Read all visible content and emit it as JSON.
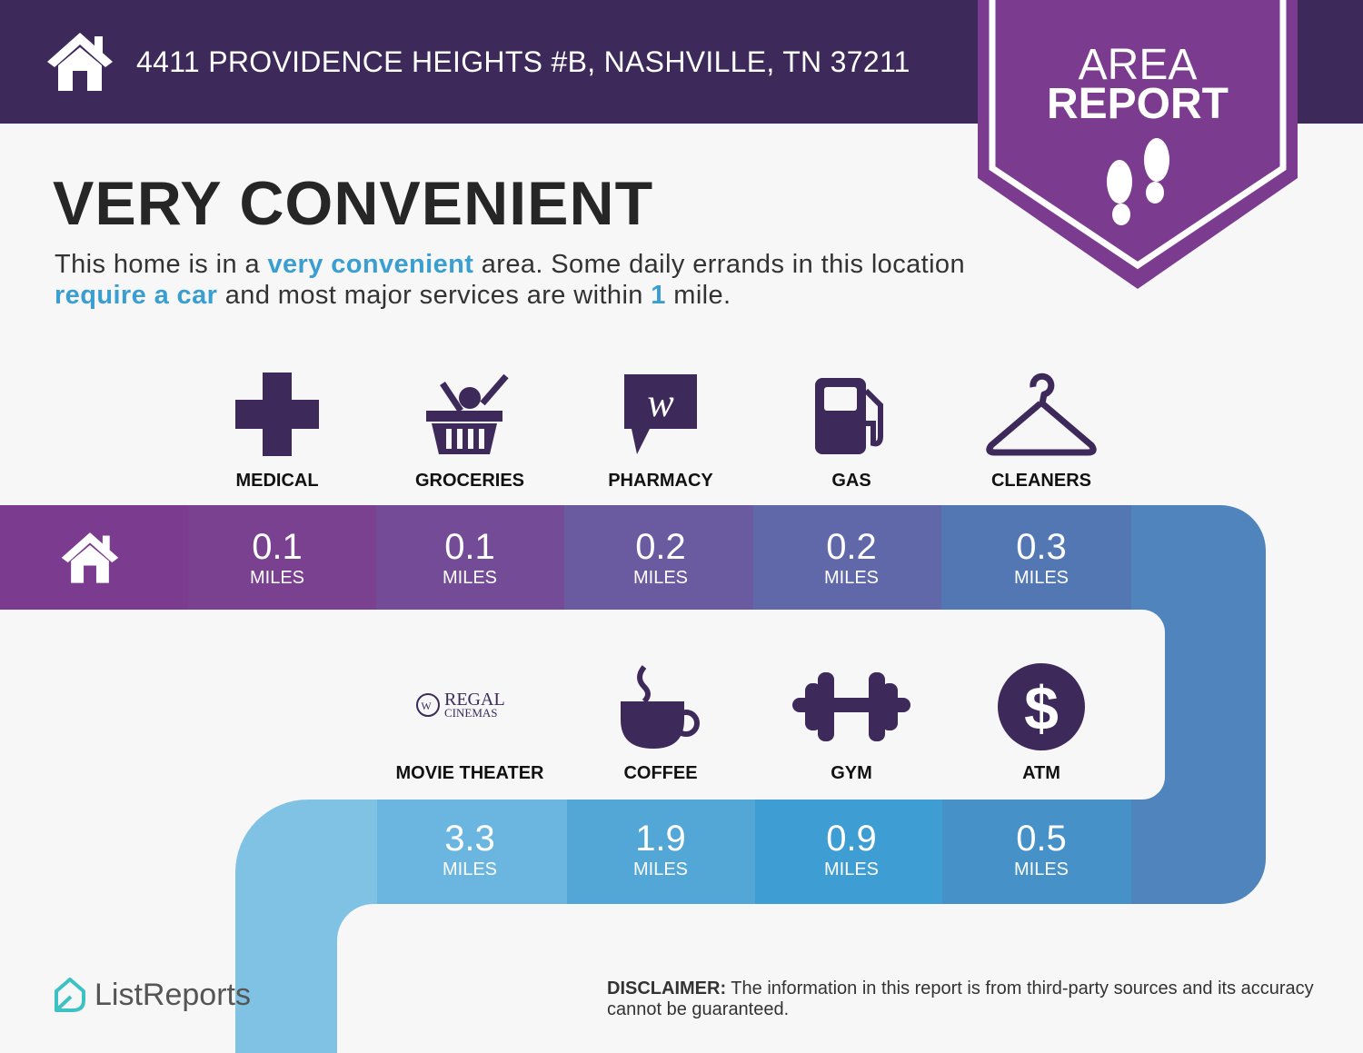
{
  "header": {
    "address": "4411 PROVIDENCE HEIGHTS #B, NASHVILLE, TN 37211",
    "home_icon": "house-icon"
  },
  "badge": {
    "line1": "AREA",
    "line2": "REPORT",
    "icon": "footprints-icon",
    "color": "#7b3b8f"
  },
  "title": "VERY CONVENIENT",
  "description": {
    "p1": "This home is in a ",
    "h1": "very convenient",
    "p2": " area. Some daily errands in this location ",
    "h2": "require a car",
    "p3": " and most major services are within ",
    "h3": "1",
    "p4": " mile."
  },
  "colors": {
    "header": "#3d2a5a",
    "accent": "#3a9fd0",
    "icon": "#3d2a5a"
  },
  "row1": [
    {
      "label": "MEDICAL",
      "value": "0.1",
      "unit": "MILES",
      "icon": "medical-cross-icon"
    },
    {
      "label": "GROCERIES",
      "value": "0.1",
      "unit": "MILES",
      "icon": "grocery-basket-icon"
    },
    {
      "label": "PHARMACY",
      "value": "0.2",
      "unit": "MILES",
      "icon": "walgreens-logo-icon"
    },
    {
      "label": "GAS",
      "value": "0.2",
      "unit": "MILES",
      "icon": "gas-pump-icon"
    },
    {
      "label": "CLEANERS",
      "value": "0.3",
      "unit": "MILES",
      "icon": "hanger-icon"
    }
  ],
  "row2": [
    {
      "label": "MOVIE THEATER",
      "value": "3.3",
      "unit": "MILES",
      "icon": "regal-cinemas-logo",
      "logo_text": "REGAL CINEMAS"
    },
    {
      "label": "COFFEE",
      "value": "1.9",
      "unit": "MILES",
      "icon": "coffee-cup-icon"
    },
    {
      "label": "GYM",
      "value": "0.9",
      "unit": "MILES",
      "icon": "dumbbell-icon"
    },
    {
      "label": "ATM",
      "value": "0.5",
      "unit": "MILES",
      "icon": "dollar-icon"
    }
  ],
  "footer": {
    "brand": "ListReports",
    "disclaimer_label": "DISCLAIMER:",
    "disclaimer_text": " The information in this report is from third-party sources and its accuracy cannot be guaranteed."
  }
}
